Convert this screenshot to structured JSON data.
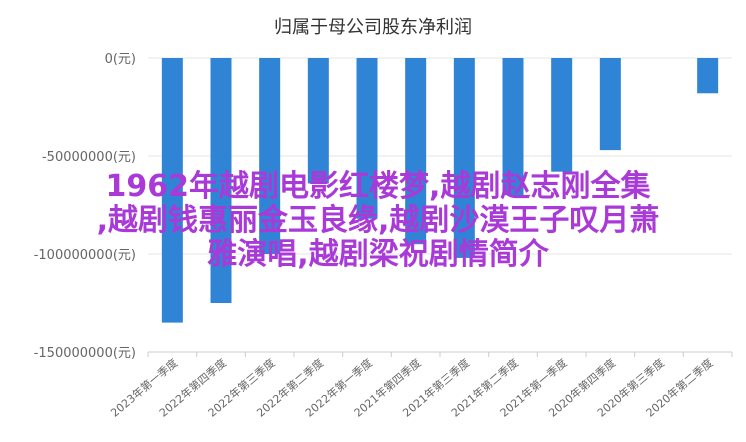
{
  "chart_data": {
    "type": "bar",
    "title": "归属于母公司股东净利润",
    "categories": [
      "2023年第一季度",
      "2022年第四季度",
      "2022年第三季度",
      "2022年第二季度",
      "2022年第一季度",
      "2021年第四季度",
      "2021年第三季度",
      "2021年第二季度",
      "2021年第一季度",
      "2020年第四季度",
      "2020年第三季度",
      "2020年第二季度"
    ],
    "values": [
      -135000000,
      -125000000,
      -100000000,
      -64000000,
      -82000000,
      -95000000,
      -102000000,
      -70000000,
      -58000000,
      -47000000,
      0,
      -18000000
    ],
    "yticks": [
      "0(元)",
      "-50000000(元)",
      "-100000000(元)",
      "-150000000(元)"
    ],
    "ytick_values": [
      0,
      -50000000,
      -100000000,
      -150000000
    ],
    "ylim": [
      -150000000,
      0
    ],
    "bar_color": "#2f84d6",
    "grid": true
  },
  "overlay": {
    "line1": "1962年越剧电影红楼梦,越剧赵志刚全集",
    "line2": ",越剧钱惠丽金玉良缘,越剧沙漠王子叹月萧",
    "line3": "雅演唱,越剧梁祝剧情简介"
  }
}
